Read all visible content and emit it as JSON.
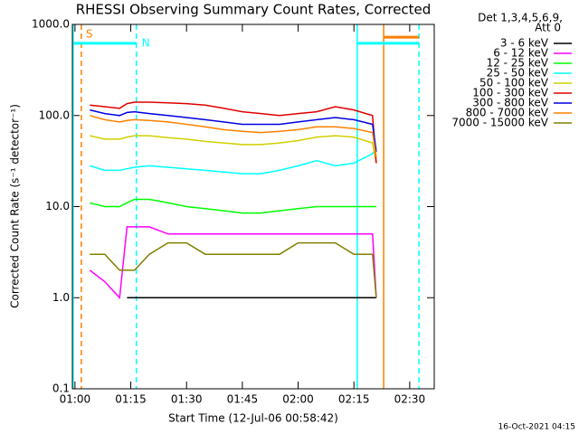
{
  "chart_data": {
    "type": "line",
    "title": "RHESSI Observing Summary Count Rates, Corrected",
    "x_label": "Start Time (12-Jul-06 00:58:42)",
    "y_label": "Corrected Count Rate (s⁻¹ detector⁻¹)",
    "legend_title": [
      "Det 1,3,4,5,6,9,",
      "Att 0"
    ],
    "footer": "16-Oct-2021 04:15",
    "log_y": true,
    "legend": "outside-right",
    "xlim": [
      59.3,
      156.6
    ],
    "ylim": [
      0.1,
      1000
    ],
    "xticks": [
      {
        "value": 60,
        "label": "01:00"
      },
      {
        "value": 75,
        "label": "01:15"
      },
      {
        "value": 90,
        "label": "01:30"
      },
      {
        "value": 105,
        "label": "01:45"
      },
      {
        "value": 120,
        "label": "02:00"
      },
      {
        "value": 135,
        "label": "02:15"
      },
      {
        "value": 150,
        "label": "02:30"
      }
    ],
    "yticks": [
      {
        "value": 0.1,
        "label": "0.1"
      },
      {
        "value": 1,
        "label": "1.0"
      },
      {
        "value": 10,
        "label": "10.0"
      },
      {
        "value": 100,
        "label": "100.0"
      },
      {
        "value": 1000,
        "label": "1000.0"
      }
    ],
    "x": [
      64,
      68,
      72,
      74,
      76,
      80,
      85,
      90,
      95,
      100,
      105,
      110,
      115,
      120,
      125,
      130,
      135,
      140,
      141
    ],
    "series": [
      {
        "name": "3 - 6 keV",
        "color": "#000000",
        "values": [
          null,
          null,
          null,
          1,
          1,
          1,
          1,
          1,
          1,
          1,
          1,
          1,
          1,
          1,
          1,
          1,
          1,
          1,
          1
        ]
      },
      {
        "name": "6 - 12 keV",
        "color": "#ff00ff",
        "values": [
          2,
          1.5,
          1,
          6,
          6,
          6,
          5,
          5,
          5,
          5,
          5,
          5,
          5,
          5,
          5,
          5,
          5,
          5,
          1
        ]
      },
      {
        "name": "12 - 25 keV",
        "color": "#00ff00",
        "values": [
          11,
          10,
          10,
          11,
          12,
          12,
          11,
          10,
          9.5,
          9,
          8.5,
          8.5,
          9,
          9.5,
          10,
          10,
          10,
          10,
          10
        ]
      },
      {
        "name": "25 - 50 keV",
        "color": "#00ffff",
        "values": [
          28,
          25,
          25,
          26,
          27,
          28,
          27,
          26,
          25,
          24,
          23,
          23,
          25,
          28,
          32,
          28,
          30,
          38,
          45
        ]
      },
      {
        "name": "50 - 100 keV",
        "color": "#d0d000",
        "values": [
          60,
          55,
          55,
          58,
          60,
          60,
          57,
          55,
          52,
          50,
          48,
          48,
          50,
          53,
          58,
          60,
          58,
          50,
          30
        ]
      },
      {
        "name": "100 - 300 keV",
        "color": "#e00000",
        "values": [
          130,
          125,
          120,
          135,
          140,
          140,
          138,
          135,
          130,
          120,
          110,
          105,
          100,
          105,
          110,
          125,
          115,
          100,
          30
        ]
      },
      {
        "name": "300 - 800 keV",
        "color": "#0000e0",
        "values": [
          115,
          105,
          100,
          108,
          110,
          105,
          100,
          95,
          90,
          85,
          80,
          80,
          80,
          85,
          90,
          95,
          90,
          80,
          40
        ]
      },
      {
        "name": "800 - 7000 keV",
        "color": "#ff8000",
        "values": [
          100,
          90,
          85,
          88,
          90,
          88,
          85,
          80,
          75,
          70,
          67,
          65,
          67,
          70,
          75,
          75,
          72,
          65,
          35
        ]
      },
      {
        "name": "7000 - 15000 keV",
        "color": "#808000",
        "values": [
          3,
          3,
          2,
          2,
          2,
          3,
          4,
          4,
          3,
          3,
          3,
          3,
          3,
          4,
          4,
          4,
          3,
          3,
          1
        ]
      }
    ],
    "markers": [
      {
        "x": 59.5,
        "color": "#00ffff",
        "dash": false
      },
      {
        "x": 61.7,
        "color": "#ff8000",
        "dash": true
      },
      {
        "x": 76.5,
        "color": "#00ffff",
        "dash": true
      },
      {
        "x": 135.9,
        "color": "#00ffff",
        "dash": false
      },
      {
        "x": 143.0,
        "color": "#ff8000",
        "dash": false
      },
      {
        "x": 152.5,
        "color": "#00ffff",
        "dash": true
      }
    ],
    "intervals": [
      {
        "start": 59.3,
        "end": 76.5,
        "y": 620,
        "color": "#00ffff",
        "label": "N"
      },
      {
        "start": 135.9,
        "end": 152.5,
        "y": 620,
        "color": "#00ffff"
      },
      {
        "start": 143.0,
        "end": 152.5,
        "y": 725,
        "color": "#ff8000"
      }
    ],
    "flags": [
      {
        "x": 61.7,
        "y": 780,
        "text": "S",
        "color": "#ff8000"
      }
    ]
  }
}
